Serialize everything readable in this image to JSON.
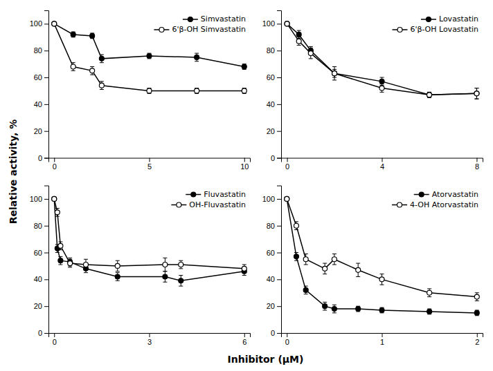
{
  "chart_data": [
    {
      "type": "line",
      "legend": "upper right",
      "grid": false,
      "x": [
        0,
        1,
        2,
        2.5,
        5,
        7.5,
        10
      ],
      "xlim": [
        -0.3,
        10.3
      ],
      "xticks": [
        0,
        5,
        10
      ],
      "ylim": [
        0,
        110
      ],
      "yticks": [
        0,
        20,
        40,
        60,
        80,
        100
      ],
      "series": [
        {
          "name": "Simvastatin",
          "marker": "filled",
          "color": "#000000",
          "values": [
            100,
            92,
            91,
            74,
            76,
            75,
            68
          ],
          "yerr": [
            1,
            2,
            2,
            3,
            2,
            3,
            2
          ]
        },
        {
          "name": "6'β-OH Simvastatin",
          "marker": "open",
          "color": "#000000",
          "values": [
            100,
            68,
            65,
            54,
            50,
            50,
            50
          ],
          "yerr": [
            1,
            3,
            3,
            3,
            2,
            2,
            2
          ]
        }
      ]
    },
    {
      "type": "line",
      "legend": "upper right",
      "grid": false,
      "x": [
        0,
        0.5,
        1,
        2,
        4,
        6,
        8
      ],
      "xlim": [
        -0.25,
        8.25
      ],
      "xticks": [
        0,
        4,
        8
      ],
      "ylim": [
        0,
        110
      ],
      "yticks": [
        0,
        20,
        40,
        60,
        80,
        100
      ],
      "series": [
        {
          "name": "Lovastatin",
          "marker": "filled",
          "color": "#000000",
          "values": [
            100,
            92,
            80,
            63,
            57,
            47,
            48
          ],
          "yerr": [
            1,
            3,
            3,
            3,
            3,
            2,
            4
          ]
        },
        {
          "name": "6'β-OH Lovastatin",
          "marker": "open",
          "color": "#000000",
          "values": [
            100,
            87,
            78,
            63,
            52,
            47,
            48
          ],
          "yerr": [
            1,
            3,
            4,
            5,
            3,
            2,
            4
          ]
        }
      ]
    },
    {
      "type": "line",
      "legend": "upper right",
      "grid": false,
      "x": [
        0,
        0.1,
        0.2,
        0.5,
        1,
        2,
        3.5,
        4,
        6
      ],
      "xlim": [
        -0.18,
        6.18
      ],
      "xticks": [
        0,
        3,
        6
      ],
      "ylim": [
        0,
        110
      ],
      "yticks": [
        0,
        20,
        40,
        60,
        80,
        100
      ],
      "series": [
        {
          "name": "Fluvastatin",
          "marker": "filled",
          "color": "#000000",
          "values": [
            100,
            63,
            54,
            53,
            48,
            42,
            42,
            39,
            46
          ],
          "yerr": [
            1,
            3,
            3,
            3,
            3,
            3,
            4,
            4,
            3
          ]
        },
        {
          "name": "OH-Fluvastatin",
          "marker": "open",
          "color": "#000000",
          "values": [
            100,
            90,
            65,
            52,
            51,
            50,
            51,
            51,
            48
          ],
          "yerr": [
            1,
            3,
            3,
            3,
            4,
            4,
            5,
            3,
            3
          ]
        }
      ]
    },
    {
      "type": "line",
      "legend": "upper right",
      "grid": false,
      "x": [
        0,
        0.1,
        0.2,
        0.4,
        0.5,
        0.75,
        1,
        1.5,
        2
      ],
      "xlim": [
        -0.06,
        2.06
      ],
      "xticks": [
        0,
        1,
        2
      ],
      "ylim": [
        0,
        110
      ],
      "yticks": [
        0,
        20,
        40,
        60,
        80,
        100
      ],
      "series": [
        {
          "name": "Atorvastatin",
          "marker": "filled",
          "color": "#000000",
          "values": [
            100,
            57,
            32,
            20,
            18,
            18,
            17,
            16,
            15
          ],
          "yerr": [
            1,
            3,
            3,
            3,
            3,
            2,
            2,
            2,
            2
          ]
        },
        {
          "name": "4-OH Atorvastatin",
          "marker": "open",
          "color": "#000000",
          "values": [
            100,
            80,
            55,
            48,
            55,
            47,
            40,
            30,
            27
          ],
          "yerr": [
            1,
            3,
            4,
            4,
            4,
            5,
            4,
            3,
            3
          ]
        }
      ]
    }
  ],
  "xlabel": "Inhibitor (μM)",
  "ylabel": "Relative activity, %"
}
